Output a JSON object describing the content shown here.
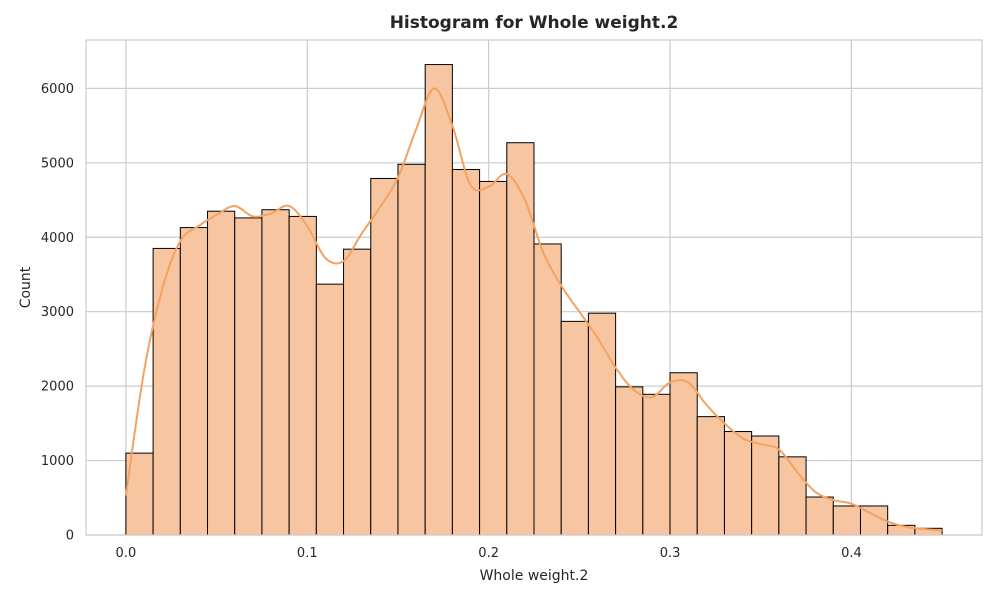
{
  "chart_data": {
    "type": "histogram",
    "title": "Histogram for Whole weight.2",
    "xlabel": "Whole weight.2",
    "ylabel": "Count",
    "xlim": [
      -0.022,
      0.472
    ],
    "ylim": [
      0,
      6650
    ],
    "x_ticks": [
      0.0,
      0.1,
      0.2,
      0.3,
      0.4
    ],
    "x_tick_labels": [
      "0.0",
      "0.1",
      "0.2",
      "0.3",
      "0.4"
    ],
    "y_ticks": [
      0,
      1000,
      2000,
      3000,
      4000,
      5000,
      6000
    ],
    "y_tick_labels": [
      "0",
      "1000",
      "2000",
      "3000",
      "4000",
      "5000",
      "6000"
    ],
    "grid": true,
    "bin_start": 0.0,
    "bin_width": 0.015,
    "values": [
      1100,
      3850,
      4130,
      4350,
      4260,
      4370,
      4280,
      3370,
      3840,
      4790,
      4980,
      6320,
      4910,
      4750,
      5270,
      3910,
      2870,
      2980,
      1990,
      1890,
      2180,
      1590,
      1390,
      1330,
      1050,
      510,
      390,
      390,
      130,
      90
    ],
    "kde": {
      "x": [
        0.0,
        0.01,
        0.02,
        0.03,
        0.04,
        0.05,
        0.06,
        0.07,
        0.08,
        0.09,
        0.1,
        0.11,
        0.12,
        0.13,
        0.14,
        0.15,
        0.16,
        0.17,
        0.18,
        0.19,
        0.2,
        0.21,
        0.22,
        0.23,
        0.24,
        0.25,
        0.26,
        0.27,
        0.28,
        0.29,
        0.3,
        0.31,
        0.32,
        0.33,
        0.34,
        0.35,
        0.36,
        0.37,
        0.38,
        0.39,
        0.4,
        0.41,
        0.42,
        0.43,
        0.44,
        0.45
      ],
      "y": [
        530,
        2200,
        3300,
        3950,
        4150,
        4300,
        4420,
        4280,
        4320,
        4420,
        4150,
        3720,
        3680,
        4050,
        4400,
        4800,
        5450,
        6000,
        5500,
        4700,
        4680,
        4850,
        4500,
        3800,
        3350,
        3000,
        2650,
        2250,
        1950,
        1850,
        2050,
        2050,
        1750,
        1500,
        1300,
        1220,
        1150,
        850,
        580,
        470,
        420,
        300,
        180,
        110,
        80,
        60
      ]
    },
    "colors": {
      "bar_fill": "#f7c6a1",
      "bar_edge": "#000000",
      "kde_line": "#f4a261",
      "grid": "#cccccc",
      "axes_border": "#cccccc"
    }
  }
}
